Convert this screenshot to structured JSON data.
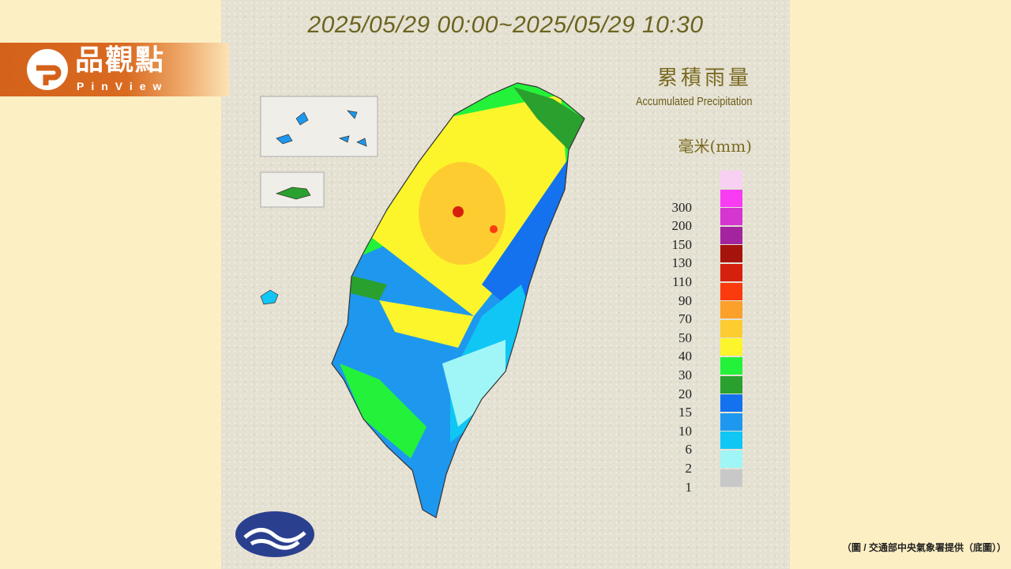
{
  "brand": {
    "name_zh": "品觀點",
    "name_en": "PinView",
    "color": "#d4621a"
  },
  "map": {
    "title": "2025/05/29 00:00~2025/05/29 10:30",
    "legend_title_zh": "累積雨量",
    "legend_title_en": "Accumulated Precipitation",
    "legend_unit": "毫米(mm)",
    "legend_scale": [
      {
        "label": "",
        "color": "#f8d0f4"
      },
      {
        "label": "300",
        "color": "#f73cf4"
      },
      {
        "label": "200",
        "color": "#d535d0"
      },
      {
        "label": "150",
        "color": "#a4239f"
      },
      {
        "label": "130",
        "color": "#a5140c"
      },
      {
        "label": "110",
        "color": "#d6200e"
      },
      {
        "label": "90",
        "color": "#fb3a0e"
      },
      {
        "label": "70",
        "color": "#fba02a"
      },
      {
        "label": "50",
        "color": "#fdcc30"
      },
      {
        "label": "40",
        "color": "#fdf52c"
      },
      {
        "label": "30",
        "color": "#24f23a"
      },
      {
        "label": "20",
        "color": "#2aa02e"
      },
      {
        "label": "15",
        "color": "#1472ee"
      },
      {
        "label": "10",
        "color": "#1e98ee"
      },
      {
        "label": "6",
        "color": "#10c6f4"
      },
      {
        "label": "2",
        "color": "#a0f6f6"
      },
      {
        "label": "1",
        "color": "#c8c8c8"
      }
    ],
    "emblem": "central-weather-administration-logo"
  },
  "caption": "（圖 / 交通部中央氣象署提供（底圖））"
}
